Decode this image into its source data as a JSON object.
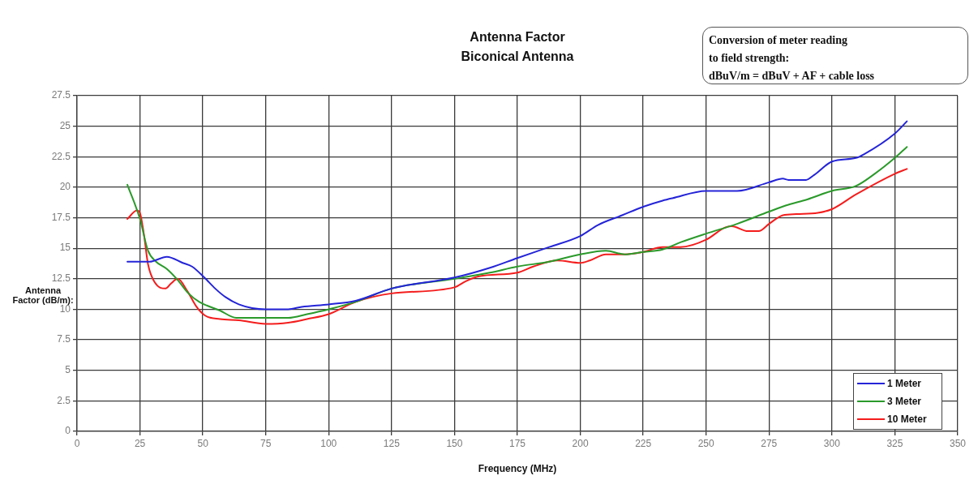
{
  "chart_data": {
    "type": "line",
    "title": "Antenna Factor",
    "subtitle": "Biconical Antenna",
    "xlabel": "Frequency (MHz)",
    "ylabel": "Antenna Factor (dB/m):",
    "annotations": [
      "Conversion of meter reading\nto field strength:\ndBuV/m = dBuV + AF + cable loss"
    ],
    "xlim": [
      0,
      350
    ],
    "xticks": [
      0,
      25,
      50,
      75,
      100,
      125,
      150,
      175,
      200,
      225,
      250,
      275,
      300,
      325,
      350
    ],
    "ylim": [
      0,
      27.5
    ],
    "yticks": [
      0,
      2.5,
      5,
      7.5,
      10,
      12.5,
      15,
      17.5,
      20,
      22.5,
      25,
      27.5
    ],
    "grid": true,
    "legend": "bottom right",
    "marker": "none",
    "line_style": "solid",
    "series": [
      {
        "name": "1 Meter",
        "color": "#2424d8",
        "x": [
          20,
          28.8,
          35.7,
          42,
          45.7,
          50.6,
          54.9,
          59,
          64.3,
          69.6,
          75,
          83.9,
          89.3,
          100,
          110.7,
          125,
          150,
          164.1,
          175,
          187.7,
          200,
          207,
          216.6,
          225,
          232.7,
          236.6,
          250,
          262.3,
          275,
          280.5,
          282.7,
          289.7,
          292.9,
          300,
          309.5,
          312.7,
          325,
          329.8
        ],
        "values": [
          13.9,
          13.9,
          14.3,
          13.8,
          13.5,
          12.6,
          11.7,
          11.0,
          10.4,
          10.1,
          10.0,
          10.0,
          10.2,
          10.4,
          10.7,
          11.7,
          12.6,
          13.4,
          14.2,
          15.1,
          16.0,
          16.9,
          17.7,
          18.4,
          18.9,
          19.1,
          19.7,
          19.7,
          20.4,
          20.7,
          20.6,
          20.6,
          21.0,
          22.1,
          22.4,
          22.7,
          24.4,
          25.4
        ]
      },
      {
        "name": "3 Meter",
        "color": "#2a9a2a",
        "x": [
          20,
          25,
          28.2,
          31.4,
          35.7,
          40,
          44.3,
          48.6,
          56.8,
          63.3,
          75,
          83.9,
          91.4,
          100,
          110.7,
          125,
          150,
          164.1,
          175,
          187.7,
          200,
          210.2,
          217.7,
          225,
          232.7,
          240,
          250,
          262.3,
          275,
          281.6,
          290.2,
          300,
          309.5,
          317,
          325,
          329.8
        ],
        "values": [
          20.2,
          17.4,
          14.8,
          13.9,
          13.3,
          12.4,
          11.3,
          10.6,
          9.9,
          9.3,
          9.3,
          9.3,
          9.6,
          10.0,
          10.6,
          11.7,
          12.5,
          13.0,
          13.5,
          13.9,
          14.5,
          14.8,
          14.5,
          14.7,
          14.9,
          15.5,
          16.2,
          17.0,
          18.0,
          18.5,
          19.0,
          19.7,
          20.1,
          21.1,
          22.4,
          23.3
        ]
      },
      {
        "name": "10 Meter",
        "color": "#f41c1c",
        "x": [
          20,
          23.8,
          25,
          26.6,
          28.2,
          30.9,
          35.2,
          37.3,
          40,
          43.8,
          47.5,
          50.8,
          56.8,
          64.3,
          75,
          83.9,
          91.4,
          100,
          110.7,
          125,
          150,
          154.5,
          159.8,
          175,
          181.3,
          190.9,
          200,
          203.8,
          210.2,
          217.7,
          225,
          232.7,
          239.8,
          250,
          257.5,
          260.2,
          266.6,
          270.9,
          275,
          280.5,
          285.9,
          294.4,
          300,
          309.5,
          325,
          329.8
        ],
        "values": [
          17.4,
          18.1,
          17.9,
          16.1,
          13.7,
          12.2,
          11.7,
          12.1,
          12.5,
          11.5,
          10.2,
          9.5,
          9.2,
          9.1,
          8.8,
          8.9,
          9.2,
          9.6,
          10.6,
          11.3,
          11.8,
          12.3,
          12.7,
          13.0,
          13.5,
          14.0,
          13.8,
          14.0,
          14.5,
          14.5,
          14.7,
          15.1,
          15.1,
          15.7,
          16.7,
          16.8,
          16.4,
          16.4,
          17.0,
          17.7,
          17.8,
          17.9,
          18.2,
          19.4,
          21.1,
          21.5
        ]
      }
    ]
  }
}
